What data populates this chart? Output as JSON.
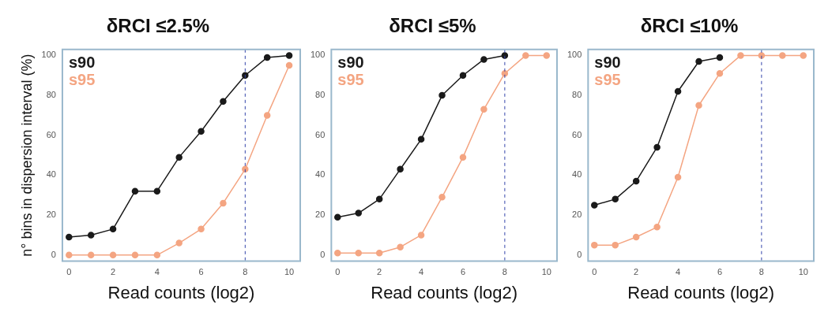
{
  "chart_data": [
    {
      "type": "line",
      "title": "δRCI ≤2.5%",
      "xlabel": "Read counts (log2)",
      "ylabel": "n° bins in dispersion interval (%)",
      "x": [
        0,
        1,
        2,
        3,
        4,
        5,
        6,
        7,
        8,
        9,
        10
      ],
      "xlim": [
        -0.3,
        10.5
      ],
      "xticks": [
        0,
        2,
        4,
        6,
        8,
        10
      ],
      "ylim": [
        -3,
        103
      ],
      "yticks": [
        0,
        20,
        40,
        60,
        80,
        100
      ],
      "legend": "top left",
      "marker": "circle",
      "grid": false,
      "series": [
        {
          "name": "s90",
          "color": "#1a1a1a",
          "values": [
            9,
            10,
            13,
            32,
            32,
            49,
            62,
            77,
            90,
            99,
            100
          ]
        },
        {
          "name": "s95",
          "color": "#f4a582",
          "values": [
            0,
            0,
            0,
            0,
            0,
            6,
            13,
            26,
            43,
            70,
            95
          ]
        }
      ],
      "ref_lines": [
        {
          "axis": "x",
          "value": 8,
          "color": "#3344aa",
          "line_style": "dashed"
        }
      ]
    },
    {
      "type": "line",
      "title": "δRCI ≤5%",
      "xlabel": "Read counts (log2)",
      "x": [
        0,
        1,
        2,
        3,
        4,
        5,
        6,
        7,
        8,
        9,
        10
      ],
      "xlim": [
        -0.3,
        10.5
      ],
      "xticks": [
        0,
        2,
        4,
        6,
        8,
        10
      ],
      "ylim": [
        -3,
        103
      ],
      "yticks": [
        0,
        20,
        40,
        60,
        80,
        100
      ],
      "legend": "top left",
      "marker": "circle",
      "grid": false,
      "series": [
        {
          "name": "s90",
          "color": "#1a1a1a",
          "values": [
            19,
            21,
            28,
            43,
            58,
            80,
            90,
            98,
            100,
            null,
            null
          ]
        },
        {
          "name": "s95",
          "color": "#f4a582",
          "values": [
            1,
            1,
            1,
            4,
            10,
            29,
            49,
            73,
            91,
            100,
            100
          ]
        }
      ],
      "ref_lines": [
        {
          "axis": "x",
          "value": 8,
          "color": "#3344aa",
          "line_style": "dashed"
        }
      ]
    },
    {
      "type": "line",
      "title": "δRCI ≤10%",
      "xlabel": "Read counts (log2)",
      "x": [
        0,
        1,
        2,
        3,
        4,
        5,
        6,
        7,
        8,
        9,
        10
      ],
      "xlim": [
        -0.3,
        10.5
      ],
      "xticks": [
        0,
        2,
        4,
        6,
        8,
        10
      ],
      "ylim": [
        -3,
        103
      ],
      "yticks": [
        0,
        20,
        40,
        60,
        80,
        100
      ],
      "legend": "top left",
      "marker": "circle",
      "grid": false,
      "series": [
        {
          "name": "s90",
          "color": "#1a1a1a",
          "values": [
            25,
            28,
            37,
            54,
            82,
            97,
            99,
            null,
            null,
            null,
            null
          ]
        },
        {
          "name": "s95",
          "color": "#f4a582",
          "values": [
            5,
            5,
            9,
            14,
            39,
            75,
            91,
            100,
            100,
            100,
            100
          ]
        }
      ],
      "ref_lines": [
        {
          "axis": "x",
          "value": 8,
          "color": "#3344aa",
          "line_style": "dashed"
        }
      ]
    }
  ]
}
